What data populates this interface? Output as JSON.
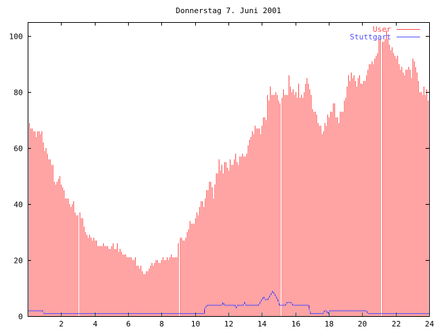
{
  "chart_data": {
    "type": "bar",
    "title": "Donnerstag 7. Juni 2001",
    "xlabel": "",
    "ylabel": "",
    "xlim": [
      0,
      24
    ],
    "ylim": [
      0,
      105
    ],
    "x_ticks": [
      "2",
      "4",
      "6",
      "8",
      "10",
      "12",
      "14",
      "16",
      "18",
      "20",
      "22",
      "24"
    ],
    "x_tick_values": [
      2,
      4,
      6,
      8,
      10,
      12,
      14,
      16,
      18,
      20,
      22,
      24
    ],
    "y_ticks": [
      "0",
      "20",
      "40",
      "60",
      "80",
      "100"
    ],
    "y_tick_values": [
      0,
      20,
      40,
      60,
      80,
      100
    ],
    "grid": false,
    "legend_position": "top-right",
    "sample_interval_hours": 0.08333,
    "series": [
      {
        "name": "User",
        "style": "impulses",
        "color": "#ff4848",
        "values": [
          66,
          69,
          67,
          67,
          66,
          66,
          64,
          66,
          66,
          65,
          66,
          62,
          59,
          60,
          58,
          56,
          56,
          54,
          54,
          48,
          47,
          48,
          49,
          50,
          47,
          46,
          45,
          42,
          42,
          42,
          40,
          39,
          40,
          41,
          37,
          36,
          36,
          37,
          35,
          35,
          32,
          30,
          29,
          28,
          29,
          28,
          27,
          28,
          27,
          27,
          25,
          25,
          25,
          25,
          26,
          25,
          25,
          25,
          24,
          24,
          25,
          26,
          24,
          24,
          26,
          23,
          24,
          23,
          22,
          22,
          22,
          21,
          21,
          21,
          21,
          20,
          20,
          21,
          18,
          18,
          17,
          18,
          16,
          15,
          15,
          16,
          16,
          17,
          18,
          19,
          18,
          19,
          20,
          20,
          19,
          19,
          20,
          21,
          20,
          20,
          21,
          20,
          21,
          22,
          21,
          21,
          21,
          21,
          26,
          28,
          28,
          27,
          27,
          28,
          30,
          31,
          34,
          33,
          33,
          33,
          35,
          37,
          36,
          39,
          41,
          41,
          39,
          42,
          45,
          45,
          48,
          48,
          46,
          42,
          47,
          51,
          51,
          56,
          52,
          54,
          51,
          55,
          55,
          53,
          52,
          56,
          54,
          54,
          56,
          58,
          55,
          54,
          57,
          57,
          58,
          57,
          57,
          58,
          61,
          63,
          64,
          66,
          65,
          68,
          67,
          67,
          67,
          65,
          68,
          71,
          71,
          70,
          79,
          77,
          82,
          79,
          79,
          79,
          80,
          79,
          77,
          76,
          78,
          81,
          79,
          79,
          79,
          86,
          82,
          80,
          81,
          79,
          80,
          78,
          83,
          78,
          79,
          78,
          80,
          83,
          85,
          83,
          81,
          79,
          74,
          73,
          73,
          72,
          69,
          68,
          68,
          65,
          66,
          69,
          68,
          72,
          71,
          73,
          73,
          76,
          76,
          71,
          71,
          69,
          73,
          73,
          73,
          77,
          78,
          82,
          86,
          84,
          87,
          85,
          86,
          84,
          82,
          85,
          86,
          83,
          83,
          84,
          84,
          86,
          88,
          90,
          90,
          91,
          90,
          92,
          93,
          94,
          99,
          99,
          98,
          98,
          99,
          102,
          99,
          97,
          95,
          96,
          94,
          93,
          92,
          93,
          90,
          88,
          89,
          87,
          86,
          88,
          88,
          89,
          88,
          85,
          92,
          91,
          89,
          87,
          84,
          80,
          80,
          79,
          82,
          79,
          81,
          77
        ]
      },
      {
        "name": "Stuttgart",
        "style": "lines",
        "color": "#5050ff",
        "points": [
          [
            0,
            2
          ],
          [
            0.9,
            2
          ],
          [
            0.95,
            1
          ],
          [
            10.55,
            1
          ],
          [
            10.6,
            3
          ],
          [
            10.75,
            4
          ],
          [
            11.6,
            4
          ],
          [
            11.68,
            5
          ],
          [
            11.76,
            4
          ],
          [
            12.4,
            4
          ],
          [
            12.45,
            3
          ],
          [
            12.55,
            4
          ],
          [
            12.9,
            4
          ],
          [
            12.97,
            5
          ],
          [
            13.05,
            4
          ],
          [
            13.8,
            4
          ],
          [
            13.9,
            5
          ],
          [
            14.0,
            6
          ],
          [
            14.1,
            7
          ],
          [
            14.2,
            6
          ],
          [
            14.35,
            6
          ],
          [
            14.45,
            7
          ],
          [
            14.55,
            8
          ],
          [
            14.65,
            9
          ],
          [
            14.75,
            8
          ],
          [
            14.85,
            7
          ],
          [
            14.95,
            6
          ],
          [
            15.05,
            4
          ],
          [
            15.4,
            4
          ],
          [
            15.5,
            5
          ],
          [
            15.75,
            5
          ],
          [
            15.85,
            4
          ],
          [
            16.8,
            4
          ],
          [
            16.9,
            1
          ],
          [
            17.65,
            1
          ],
          [
            17.75,
            2
          ],
          [
            17.85,
            2
          ],
          [
            17.95,
            1
          ],
          [
            18.05,
            2
          ],
          [
            20.25,
            2
          ],
          [
            20.35,
            1
          ],
          [
            24,
            1
          ]
        ]
      }
    ]
  }
}
